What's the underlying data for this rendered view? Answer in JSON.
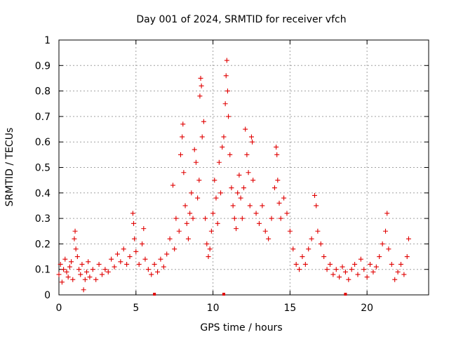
{
  "chart_data": {
    "type": "scatter",
    "title": "Day 001 of 2024, SRMTID for receiver vfch",
    "xlabel": "GPS time / hours",
    "ylabel": "SRMTID / TECUs",
    "xlim": [
      0,
      24
    ],
    "ylim": [
      0,
      1
    ],
    "xticks": [
      0,
      5,
      10,
      15,
      20
    ],
    "yticks": [
      0,
      0.1,
      0.2,
      0.3,
      0.4,
      0.5,
      0.6,
      0.7,
      0.8,
      0.9,
      1
    ],
    "xtick_labels": [
      "0",
      "5",
      "10",
      "15",
      "20"
    ],
    "ytick_labels": [
      "0",
      "0.1",
      "0.2",
      "0.3",
      "0.4",
      "0.5",
      "0.6",
      "0.7",
      "0.8",
      "0.9",
      "1"
    ],
    "grid": true,
    "marker": "plus",
    "series_color": "#e00000",
    "series": [
      {
        "name": "SRMTID",
        "points": [
          [
            0.0,
            0.08
          ],
          [
            0.1,
            0.12
          ],
          [
            0.2,
            0.05
          ],
          [
            0.3,
            0.1
          ],
          [
            0.4,
            0.14
          ],
          [
            0.5,
            0.09
          ],
          [
            0.6,
            0.07
          ],
          [
            0.7,
            0.11
          ],
          [
            0.8,
            0.13
          ],
          [
            0.9,
            0.06
          ],
          [
            1.0,
            0.22
          ],
          [
            1.05,
            0.25
          ],
          [
            1.1,
            0.18
          ],
          [
            1.2,
            0.15
          ],
          [
            1.3,
            0.1
          ],
          [
            1.4,
            0.08
          ],
          [
            1.5,
            0.12
          ],
          [
            1.6,
            0.02
          ],
          [
            1.7,
            0.06
          ],
          [
            1.8,
            0.09
          ],
          [
            1.9,
            0.13
          ],
          [
            2.0,
            0.07
          ],
          [
            2.2,
            0.1
          ],
          [
            2.4,
            0.06
          ],
          [
            2.6,
            0.12
          ],
          [
            2.8,
            0.08
          ],
          [
            3.0,
            0.1
          ],
          [
            3.2,
            0.09
          ],
          [
            3.4,
            0.14
          ],
          [
            3.6,
            0.11
          ],
          [
            3.8,
            0.16
          ],
          [
            4.0,
            0.13
          ],
          [
            4.2,
            0.18
          ],
          [
            4.4,
            0.12
          ],
          [
            4.6,
            0.15
          ],
          [
            4.8,
            0.32
          ],
          [
            4.85,
            0.28
          ],
          [
            4.9,
            0.22
          ],
          [
            5.0,
            0.17
          ],
          [
            5.2,
            0.12
          ],
          [
            5.4,
            0.2
          ],
          [
            5.5,
            0.26
          ],
          [
            5.6,
            0.14
          ],
          [
            5.8,
            0.1
          ],
          [
            6.0,
            0.08
          ],
          [
            6.2,
            0.12
          ],
          [
            6.4,
            0.09
          ],
          [
            6.6,
            0.14
          ],
          [
            6.8,
            0.11
          ],
          [
            7.0,
            0.16
          ],
          [
            7.2,
            0.22
          ],
          [
            7.4,
            0.43
          ],
          [
            7.5,
            0.18
          ],
          [
            7.6,
            0.3
          ],
          [
            7.8,
            0.25
          ],
          [
            7.9,
            0.55
          ],
          [
            8.0,
            0.62
          ],
          [
            8.05,
            0.67
          ],
          [
            8.1,
            0.48
          ],
          [
            8.2,
            0.35
          ],
          [
            8.3,
            0.28
          ],
          [
            8.4,
            0.22
          ],
          [
            8.5,
            0.32
          ],
          [
            8.6,
            0.4
          ],
          [
            8.7,
            0.3
          ],
          [
            8.8,
            0.57
          ],
          [
            8.9,
            0.52
          ],
          [
            9.0,
            0.38
          ],
          [
            9.1,
            0.45
          ],
          [
            9.15,
            0.78
          ],
          [
            9.2,
            0.85
          ],
          [
            9.25,
            0.82
          ],
          [
            9.3,
            0.62
          ],
          [
            9.4,
            0.68
          ],
          [
            9.5,
            0.3
          ],
          [
            9.6,
            0.2
          ],
          [
            9.7,
            0.15
          ],
          [
            9.8,
            0.18
          ],
          [
            9.9,
            0.25
          ],
          [
            10.0,
            0.32
          ],
          [
            10.1,
            0.45
          ],
          [
            10.2,
            0.38
          ],
          [
            10.3,
            0.28
          ],
          [
            10.4,
            0.52
          ],
          [
            10.5,
            0.4
          ],
          [
            10.6,
            0.58
          ],
          [
            10.7,
            0.62
          ],
          [
            10.8,
            0.75
          ],
          [
            10.85,
            0.86
          ],
          [
            10.9,
            0.92
          ],
          [
            10.95,
            0.8
          ],
          [
            11.0,
            0.7
          ],
          [
            11.1,
            0.55
          ],
          [
            11.2,
            0.42
          ],
          [
            11.3,
            0.35
          ],
          [
            11.4,
            0.3
          ],
          [
            11.5,
            0.26
          ],
          [
            11.6,
            0.4
          ],
          [
            11.7,
            0.47
          ],
          [
            11.8,
            0.38
          ],
          [
            11.9,
            0.3
          ],
          [
            12.0,
            0.42
          ],
          [
            12.1,
            0.65
          ],
          [
            12.2,
            0.55
          ],
          [
            12.3,
            0.48
          ],
          [
            12.4,
            0.35
          ],
          [
            12.5,
            0.62
          ],
          [
            12.55,
            0.6
          ],
          [
            12.6,
            0.45
          ],
          [
            12.8,
            0.32
          ],
          [
            13.0,
            0.28
          ],
          [
            13.2,
            0.35
          ],
          [
            13.4,
            0.25
          ],
          [
            13.6,
            0.22
          ],
          [
            13.8,
            0.3
          ],
          [
            14.0,
            0.42
          ],
          [
            14.1,
            0.58
          ],
          [
            14.15,
            0.55
          ],
          [
            14.2,
            0.45
          ],
          [
            14.3,
            0.36
          ],
          [
            14.4,
            0.3
          ],
          [
            14.6,
            0.38
          ],
          [
            14.8,
            0.32
          ],
          [
            15.0,
            0.25
          ],
          [
            15.2,
            0.18
          ],
          [
            15.4,
            0.12
          ],
          [
            15.6,
            0.1
          ],
          [
            15.8,
            0.15
          ],
          [
            16.0,
            0.12
          ],
          [
            16.2,
            0.18
          ],
          [
            16.4,
            0.22
          ],
          [
            16.6,
            0.39
          ],
          [
            16.7,
            0.35
          ],
          [
            16.8,
            0.25
          ],
          [
            17.0,
            0.2
          ],
          [
            17.2,
            0.15
          ],
          [
            17.4,
            0.1
          ],
          [
            17.6,
            0.12
          ],
          [
            17.8,
            0.08
          ],
          [
            18.0,
            0.1
          ],
          [
            18.2,
            0.07
          ],
          [
            18.4,
            0.11
          ],
          [
            18.6,
            0.09
          ],
          [
            18.8,
            0.06
          ],
          [
            19.0,
            0.1
          ],
          [
            19.2,
            0.12
          ],
          [
            19.4,
            0.08
          ],
          [
            19.6,
            0.14
          ],
          [
            19.8,
            0.1
          ],
          [
            20.0,
            0.07
          ],
          [
            20.2,
            0.12
          ],
          [
            20.4,
            0.09
          ],
          [
            20.6,
            0.11
          ],
          [
            20.8,
            0.15
          ],
          [
            21.0,
            0.2
          ],
          [
            21.2,
            0.25
          ],
          [
            21.3,
            0.32
          ],
          [
            21.4,
            0.18
          ],
          [
            21.6,
            0.12
          ],
          [
            21.8,
            0.06
          ],
          [
            22.0,
            0.09
          ],
          [
            22.2,
            0.12
          ],
          [
            22.4,
            0.08
          ],
          [
            22.6,
            0.15
          ],
          [
            22.7,
            0.22
          ]
        ]
      }
    ],
    "zero_markers_x": [
      6.2,
      10.7,
      18.6
    ]
  }
}
